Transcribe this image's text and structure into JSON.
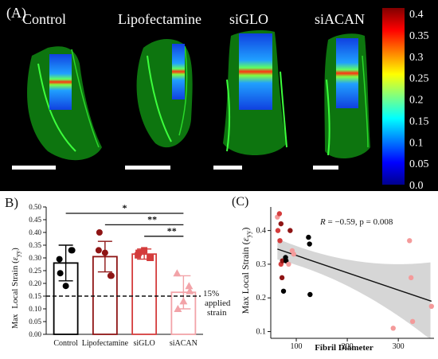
{
  "panel_a": {
    "label": "(A)",
    "groups": [
      "Control",
      "Lipofectamine",
      "siGLO",
      "siACAN"
    ],
    "colorbar": {
      "ticks": [
        "0.4",
        "0.35",
        "0.3",
        "0.25",
        "0.2",
        "0.15",
        "0.1",
        "0.05",
        "0.0"
      ],
      "min": 0.0,
      "max": 0.4
    }
  },
  "panel_b": {
    "label": "B)",
    "ylabel_prefix": "Max",
    "ylabel_main": "Local Strain (",
    "ylabel_sym": "ε",
    "ylabel_sub": "yy",
    "ylabel_end": ")",
    "annotation_lines": [
      "15%",
      "applied",
      "strain"
    ],
    "sig_labels": [
      "*",
      "**",
      "**"
    ]
  },
  "panel_c": {
    "label": "(C)",
    "stats_r": "R",
    "stats_text": " = −0.59, p = 0.008",
    "xlabel": "Fibril Diameter",
    "ylabel_main": "Max Local Strain (",
    "ylabel_sym": "ε",
    "ylabel_sub": "yy",
    "ylabel_end": ")"
  },
  "chart_data": [
    {
      "type": "bar",
      "categories": [
        "Control",
        "Lipofectamine",
        "siGLO",
        "siACAN"
      ],
      "values": [
        0.28,
        0.305,
        0.315,
        0.165
      ],
      "errors": [
        0.07,
        0.06,
        0.02,
        0.065
      ],
      "points": [
        [
          0.295,
          0.33,
          0.19,
          0.24,
          0.33
        ],
        [
          0.33,
          0.23,
          0.32,
          0.4,
          0.23
        ],
        [
          0.31,
          0.3,
          0.33,
          0.32,
          0.3
        ],
        [
          0.24,
          0.19,
          0.13,
          0.1,
          0.17
        ]
      ],
      "colors": [
        "#000000",
        "#8e1414",
        "#d43c3c",
        "#f2a3a8"
      ],
      "ylim": [
        0,
        0.5
      ],
      "yticks": [
        "0.00",
        "0.05",
        "0.10",
        "0.15",
        "0.20",
        "0.25",
        "0.30",
        "0.35",
        "0.40",
        "0.45",
        "0.50"
      ],
      "reference_line": 0.15,
      "significance": [
        {
          "from": "Control",
          "to": "siACAN",
          "label": "*"
        },
        {
          "from": "Lipofectamine",
          "to": "siACAN",
          "label": "**"
        },
        {
          "from": "siGLO",
          "to": "siACAN",
          "label": "**"
        }
      ],
      "legend": "none"
    },
    {
      "type": "scatter",
      "xlabel": "Fibril Diameter",
      "ylabel": "Max Local Strain (εyy)",
      "xlim": [
        50,
        370
      ],
      "ylim": [
        0.08,
        0.47
      ],
      "xticks": [
        "100",
        "200",
        "300"
      ],
      "yticks": [
        "0.1",
        "0.2",
        "0.3",
        "0.4"
      ],
      "points": [
        {
          "x": 63,
          "y": 0.44,
          "color": "#f49a9a"
        },
        {
          "x": 67,
          "y": 0.45,
          "color": "#d43c3c"
        },
        {
          "x": 70,
          "y": 0.42,
          "color": "#8e1414"
        },
        {
          "x": 64,
          "y": 0.4,
          "color": "#d43c3c"
        },
        {
          "x": 68,
          "y": 0.37,
          "color": "#d43c3c"
        },
        {
          "x": 70,
          "y": 0.3,
          "color": "#d43c3c"
        },
        {
          "x": 72,
          "y": 0.26,
          "color": "#8e1414"
        },
        {
          "x": 73,
          "y": 0.31,
          "color": "#8e1414"
        },
        {
          "x": 75,
          "y": 0.22,
          "color": "#000000"
        },
        {
          "x": 79,
          "y": 0.32,
          "color": "#000000"
        },
        {
          "x": 80,
          "y": 0.31,
          "color": "#000000"
        },
        {
          "x": 85,
          "y": 0.3,
          "color": "#f49a9a"
        },
        {
          "x": 88,
          "y": 0.4,
          "color": "#8e1414"
        },
        {
          "x": 92,
          "y": 0.34,
          "color": "#f49a9a"
        },
        {
          "x": 95,
          "y": 0.33,
          "color": "#f49a9a"
        },
        {
          "x": 124,
          "y": 0.38,
          "color": "#000000"
        },
        {
          "x": 126,
          "y": 0.36,
          "color": "#000000"
        },
        {
          "x": 127,
          "y": 0.21,
          "color": "#000000"
        },
        {
          "x": 290,
          "y": 0.11,
          "color": "#f49a9a"
        },
        {
          "x": 322,
          "y": 0.37,
          "color": "#f49a9a"
        },
        {
          "x": 325,
          "y": 0.26,
          "color": "#f49a9a"
        },
        {
          "x": 328,
          "y": 0.13,
          "color": "#f49a9a"
        },
        {
          "x": 365,
          "y": 0.175,
          "color": "#f49a9a"
        }
      ],
      "fit_line": {
        "x": [
          63,
          365
        ],
        "y": [
          0.345,
          0.19
        ]
      },
      "confidence_band": true,
      "legend": "none"
    }
  ]
}
